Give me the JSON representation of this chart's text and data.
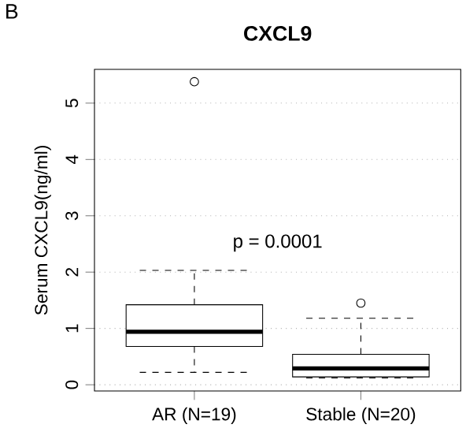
{
  "chart_data": {
    "type": "box",
    "title": "CXCL9",
    "ylabel": "Serum CXCL9(ng/ml)",
    "categories": [
      "AR (N=19)",
      "Stable (N=20)"
    ],
    "boxes": [
      {
        "low": 0.22,
        "q1": 0.68,
        "median": 0.94,
        "q3": 1.42,
        "high": 2.03,
        "outliers": [
          5.38
        ]
      },
      {
        "low": 0.12,
        "q1": 0.14,
        "median": 0.29,
        "q3": 0.54,
        "high": 1.18,
        "outliers": [
          1.45
        ]
      }
    ],
    "ylim": [
      -0.11,
      5.6
    ],
    "yticks": [
      0,
      1,
      2,
      3,
      4,
      5
    ],
    "grid": "y",
    "annotations": [
      "B",
      "p = 0.0001"
    ]
  }
}
